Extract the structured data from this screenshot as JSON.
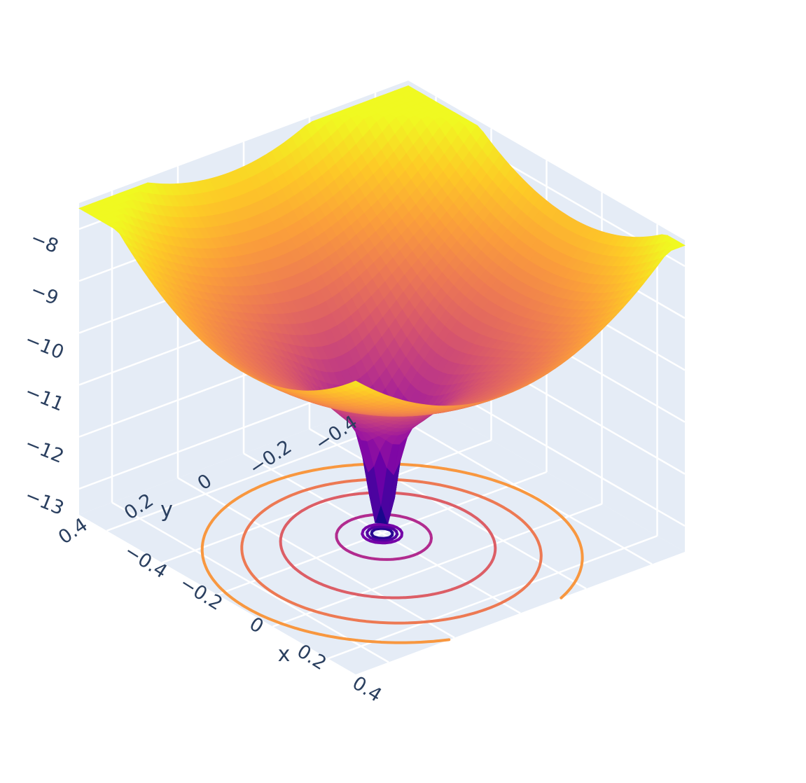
{
  "chart_data": {
    "type": "surface3d",
    "title": "",
    "colorscale": "plasma",
    "colorscale_colors": [
      "#0d0887",
      "#46039f",
      "#7201a8",
      "#9c179e",
      "#bd3786",
      "#d8576b",
      "#ed7953",
      "#fb9f3a",
      "#fdca26",
      "#f0f921"
    ],
    "scene_background": "#e5ecf6",
    "grid_color": "#ffffff",
    "x_axis": {
      "title": "x",
      "range": [
        -0.5,
        0.5
      ],
      "ticks": [
        -0.4,
        -0.2,
        0,
        0.2,
        0.4
      ],
      "tick_labels": [
        "−0.4",
        "−0.2",
        "0",
        "0.2",
        "0.4"
      ]
    },
    "y_axis": {
      "title": "y",
      "range": [
        -0.5,
        0.5
      ],
      "ticks": [
        -0.4,
        -0.2,
        0,
        0.2,
        0.4
      ],
      "tick_labels": [
        "−0.4",
        "−0.2",
        "0",
        "0.2",
        "0.4"
      ]
    },
    "z_axis": {
      "title": "",
      "range": [
        -13.5,
        -7.5
      ],
      "ticks": [
        -13,
        -12,
        -11,
        -10,
        -9,
        -8
      ],
      "tick_labels": [
        "−13",
        "−12",
        "−11",
        "−10",
        "−9",
        "−8"
      ]
    },
    "surface": {
      "minimum": {
        "x": 0.0,
        "y": 0.0,
        "z": -13.3
      },
      "z_range": [
        -13.3,
        -7.6
      ],
      "projected_contours": true,
      "contour_levels": [
        -13.0,
        -12.5,
        -12.0,
        -11.0,
        -10.0,
        -9.5,
        -9.0
      ]
    }
  }
}
